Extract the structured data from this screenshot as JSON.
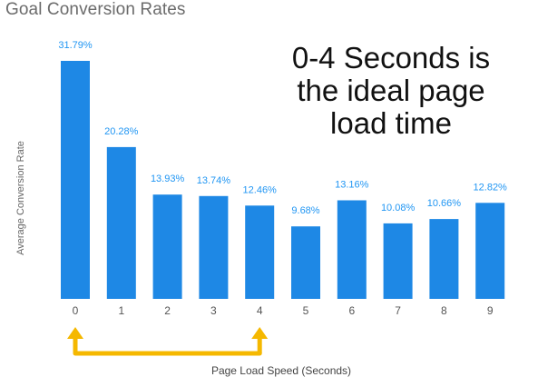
{
  "chart_data": {
    "type": "bar",
    "title": "Goal Conversion Rates",
    "xlabel": "Page Load Speed (Seconds)",
    "ylabel": "Average Conversion Rate",
    "categories": [
      "0",
      "1",
      "2",
      "3",
      "4",
      "5",
      "6",
      "7",
      "8",
      "9"
    ],
    "values": [
      31.79,
      20.28,
      13.93,
      13.74,
      12.46,
      9.68,
      13.16,
      10.08,
      10.66,
      12.82
    ],
    "data_labels": [
      "31.79%",
      "20.28%",
      "13.93%",
      "13.74%",
      "12.46%",
      "9.68%",
      "13.16%",
      "10.08%",
      "10.66%",
      "12.82%"
    ],
    "ylim": [
      0,
      31.79
    ],
    "grid": false,
    "annotation": "0-4 Seconds is the ideal page load time",
    "annotation_range": [
      "0",
      "4"
    ],
    "bar_color": "#1e88e5",
    "label_color": "#2196f3",
    "arrow_color": "#f5b800"
  }
}
